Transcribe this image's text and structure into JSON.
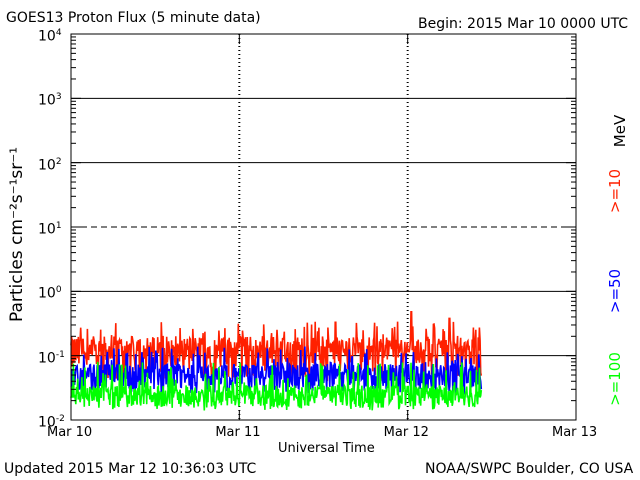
{
  "chart_data": {
    "type": "line",
    "title": "GOES13 Proton Flux (5 minute data)",
    "begin_text": "Begin: 2015 Mar 10 0000 UTC",
    "xlabel": "Universal Time",
    "ylabel": "Particles cm⁻²s⁻¹sr⁻¹",
    "y_scale": "log",
    "ylim": [
      0.01,
      10000
    ],
    "y_ticks": [
      {
        "base": "10",
        "exp": "-2"
      },
      {
        "base": "10",
        "exp": "-1"
      },
      {
        "base": "10",
        "exp": "0"
      },
      {
        "base": "10",
        "exp": "1"
      },
      {
        "base": "10",
        "exp": "2"
      },
      {
        "base": "10",
        "exp": "3"
      },
      {
        "base": "10",
        "exp": "4"
      }
    ],
    "x_range_days": [
      0,
      3
    ],
    "x_ticks": [
      "Mar 10",
      "Mar 11",
      "Mar 12",
      "Mar 13"
    ],
    "data_end_day": 2.44,
    "dashed_reference_levels": [
      10
    ],
    "solid_reference_levels": [
      0.1,
      1,
      100,
      1000
    ],
    "series": [
      {
        "name": ">=10",
        "color": "#ff2000",
        "baseline": 0.12,
        "spread": 0.1,
        "spikes": 0.22,
        "peaks": [
          {
            "x": 2.02,
            "y": 0.48
          },
          {
            "x": 2.25,
            "y": 0.38
          },
          {
            "x": 1.57,
            "y": 0.33
          }
        ]
      },
      {
        "name": ">=50",
        "color": "#0000ff",
        "baseline": 0.05,
        "spread": 0.03,
        "spikes": 0.09
      },
      {
        "name": ">=100",
        "color": "#00ff00",
        "baseline": 0.025,
        "spread": 0.012,
        "spikes": 0.055
      }
    ],
    "legend_unit": "MeV",
    "grid": true
  },
  "footer": {
    "updated": "Updated 2015 Mar 12 10:36:03 UTC",
    "source": "NOAA/SWPC Boulder, CO USA"
  }
}
